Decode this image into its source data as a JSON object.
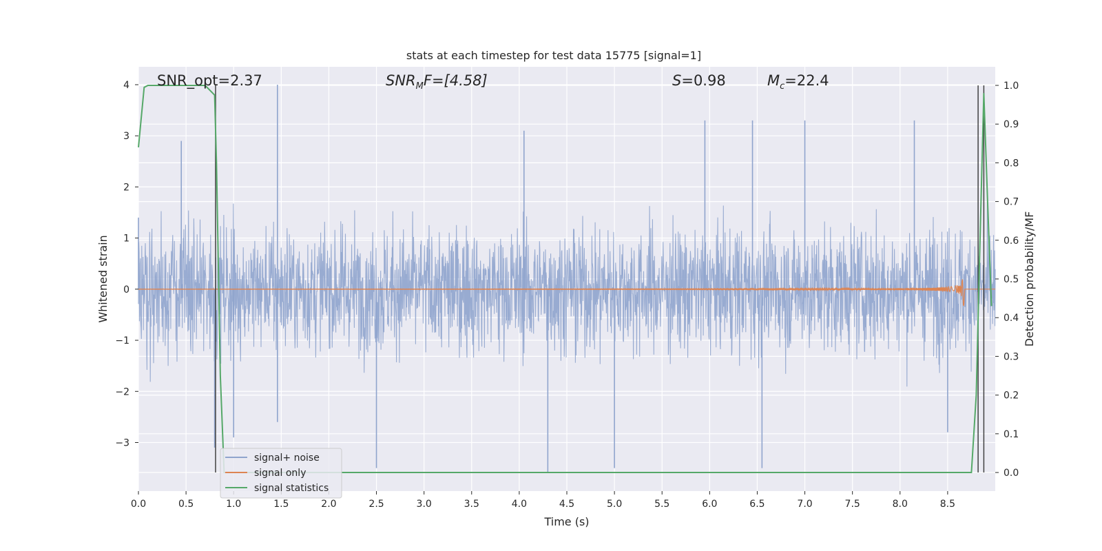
{
  "chart_data": {
    "type": "line",
    "title": "stats at each timestep for test data 15775 [signal=1]",
    "xlabel": "Time (s)",
    "ylabel_left": "Whitened strain",
    "ylabel_right": "Detection probability/MF",
    "xlim": [
      0.0,
      9.0
    ],
    "ylim_left": [
      -3.95,
      4.35
    ],
    "ylim_right": [
      -0.048,
      1.048
    ],
    "x_ticks": [
      "0.0",
      "0.5",
      "1.0",
      "1.5",
      "2.0",
      "2.5",
      "3.0",
      "3.5",
      "4.0",
      "4.5",
      "5.0",
      "5.5",
      "6.0",
      "6.5",
      "7.0",
      "7.5",
      "8.0",
      "8.5"
    ],
    "y_ticks_left": [
      "−3",
      "−2",
      "−1",
      "0",
      "1",
      "2",
      "3",
      "4"
    ],
    "y_ticks_right": [
      "0.0",
      "0.1",
      "0.2",
      "0.3",
      "0.4",
      "0.5",
      "0.6",
      "0.7",
      "0.8",
      "0.9",
      "1.0"
    ],
    "grid": true,
    "legend_position": "lower-left",
    "annotations": {
      "snr_opt": "SNR_opt=2.37",
      "snr_mf_label": "SNR",
      "snr_mf_sub": "M",
      "snr_mf_tail": "F=[4.58]",
      "s_label": "S",
      "s_tail": "=0.98",
      "mc_label": "M",
      "mc_sub": "c",
      "mc_tail": "=22.4"
    },
    "colors": {
      "background": "#eaeaf2",
      "grid": "#ffffff",
      "noise": "#8fa4cd",
      "signal": "#dd8452",
      "stats": "#55a868",
      "vlines": "#404040"
    },
    "series": [
      {
        "name": "signal+ noise",
        "kind": "noisy-strain",
        "sample_points": [
          [
            0.0,
            1.4
          ],
          [
            0.45,
            2.9
          ],
          [
            0.8,
            -3.1
          ],
          [
            1.0,
            -2.9
          ],
          [
            1.46,
            4.0
          ],
          [
            1.46,
            -2.6
          ],
          [
            2.5,
            -3.5
          ],
          [
            4.05,
            3.1
          ],
          [
            4.3,
            -3.6
          ],
          [
            5.0,
            -3.5
          ],
          [
            5.95,
            3.3
          ],
          [
            6.45,
            3.3
          ],
          [
            6.55,
            -3.5
          ],
          [
            7.0,
            3.3
          ],
          [
            8.15,
            3.3
          ],
          [
            8.5,
            -2.8
          ]
        ]
      },
      {
        "name": "signal only",
        "kind": "chirp",
        "merger_time": 8.67,
        "peak_amplitude": 0.42
      },
      {
        "name": "signal statistics",
        "points": [
          [
            0.0,
            0.84
          ],
          [
            0.06,
            0.995
          ],
          [
            0.1,
            1.0
          ],
          [
            0.7,
            1.0
          ],
          [
            0.8,
            0.975
          ],
          [
            0.82,
            0.8
          ],
          [
            0.86,
            0.25
          ],
          [
            0.9,
            0.0
          ],
          [
            8.75,
            0.0
          ],
          [
            8.8,
            0.2
          ],
          [
            8.84,
            0.6
          ],
          [
            8.88,
            0.98
          ],
          [
            8.92,
            0.7
          ],
          [
            8.96,
            0.43
          ]
        ]
      }
    ],
    "vertical_lines": [
      0.81,
      8.82,
      8.88
    ]
  }
}
